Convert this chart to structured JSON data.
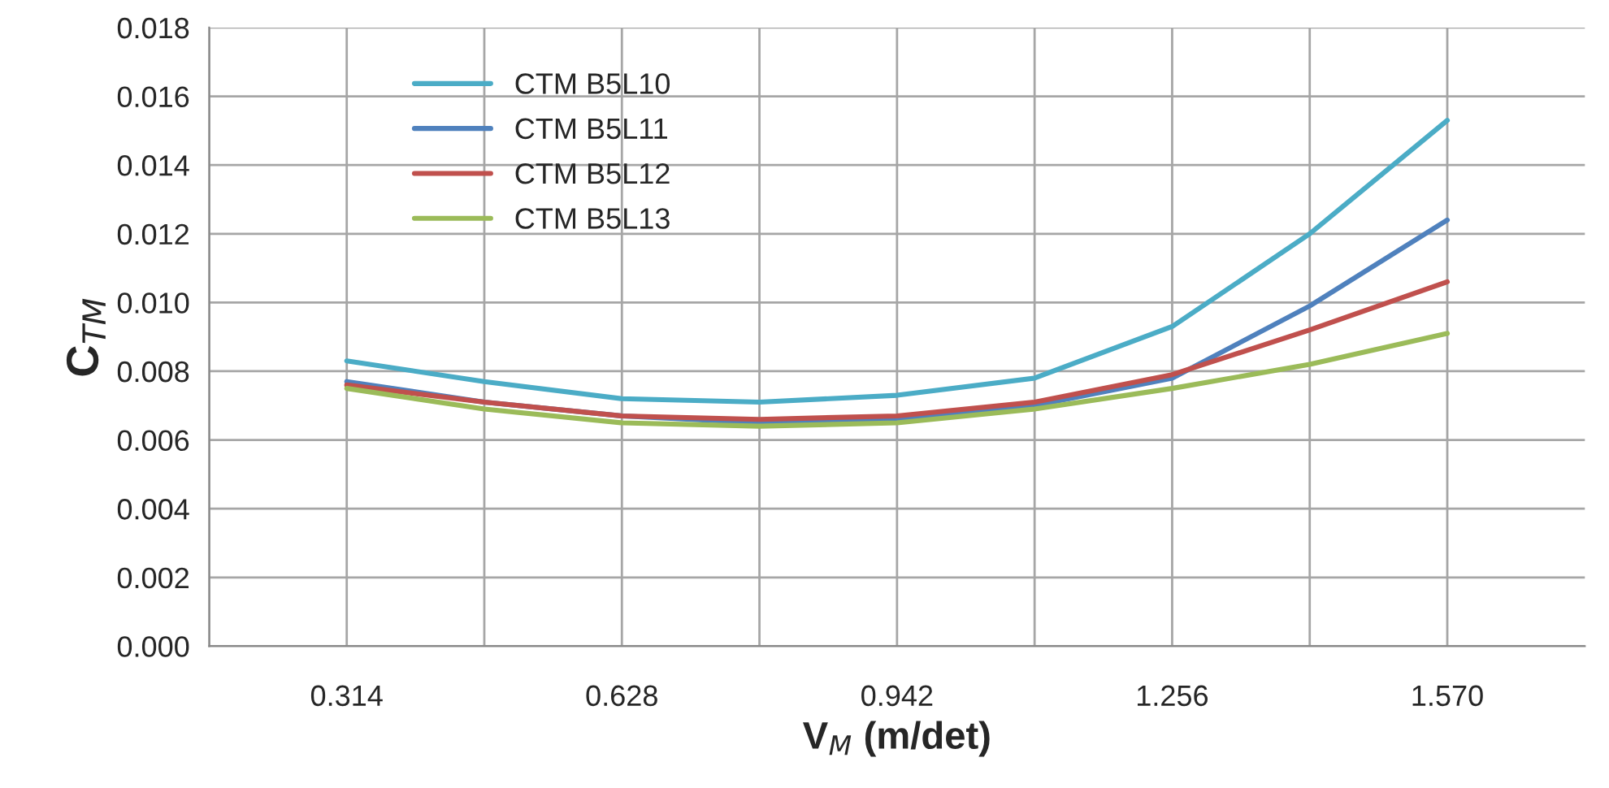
{
  "chart_data": {
    "type": "line",
    "xlabel": "V$_{M}$ (m/det)",
    "ylabel": "C$_{TM}$",
    "x": [
      0.314,
      0.471,
      0.628,
      0.785,
      0.942,
      1.099,
      1.256,
      1.413,
      1.57
    ],
    "series": [
      {
        "name": "CTM B5L10",
        "color": "#4bacc6",
        "values": [
          0.0083,
          0.0077,
          0.0072,
          0.0071,
          0.0073,
          0.0078,
          0.0093,
          0.012,
          0.0153
        ]
      },
      {
        "name": "CTM B5L11",
        "color": "#4f81bd",
        "values": [
          0.0077,
          0.0071,
          0.0067,
          0.0065,
          0.0066,
          0.007,
          0.0078,
          0.0099,
          0.0124
        ]
      },
      {
        "name": "CTM B5L12",
        "color": "#c0504d",
        "values": [
          0.0076,
          0.0071,
          0.0067,
          0.0066,
          0.0067,
          0.0071,
          0.0079,
          0.0092,
          0.0106
        ]
      },
      {
        "name": "CTM B5L13",
        "color": "#9bbb59",
        "values": [
          0.0075,
          0.0069,
          0.0065,
          0.0064,
          0.0065,
          0.0069,
          0.0075,
          0.0082,
          0.0091
        ]
      }
    ],
    "xlim": [
      0.157,
      1.727
    ],
    "xticks": [
      {
        "value": 0.157,
        "label": null
      },
      {
        "value": 0.314,
        "label": "0.314"
      },
      {
        "value": 0.471,
        "label": null
      },
      {
        "value": 0.628,
        "label": "0.628"
      },
      {
        "value": 0.785,
        "label": null
      },
      {
        "value": 0.942,
        "label": "0.942"
      },
      {
        "value": 1.099,
        "label": null
      },
      {
        "value": 1.256,
        "label": "1.256"
      },
      {
        "value": 1.413,
        "label": null
      },
      {
        "value": 1.57,
        "label": "1.570"
      }
    ],
    "ylim": [
      0,
      0.018
    ],
    "yticks": [
      {
        "value": 0,
        "label": "0.000"
      },
      {
        "value": 0.002,
        "label": "0.002"
      },
      {
        "value": 0.004,
        "label": "0.004"
      },
      {
        "value": 0.006,
        "label": "0.006"
      },
      {
        "value": 0.008,
        "label": "0.008"
      },
      {
        "value": 0.01,
        "label": "0.010"
      },
      {
        "value": 0.012,
        "label": "0.012"
      },
      {
        "value": 0.014,
        "label": "0.014"
      },
      {
        "value": 0.016,
        "label": "0.016"
      },
      {
        "value": 0.018,
        "label": "0.018"
      }
    ],
    "grid": true,
    "legend": "top left",
    "marker": "none",
    "line_style": "solid"
  }
}
